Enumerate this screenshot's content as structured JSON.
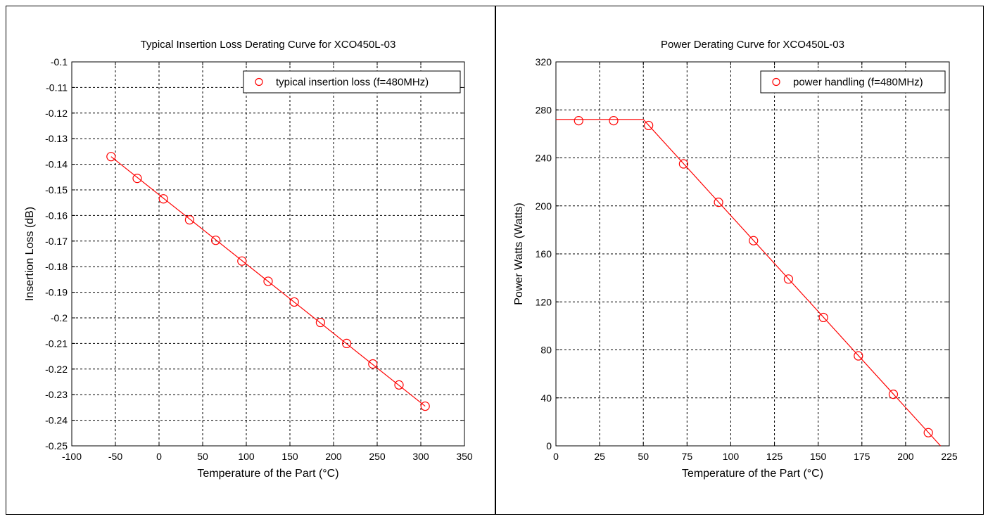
{
  "chart_data": [
    {
      "type": "scatter",
      "title": "Typical Insertion Loss Derating Curve for XCO450L-03",
      "xlabel": "Temperature of the Part (°C)",
      "ylabel": "Insertion Loss (dB)",
      "xlim": [
        -100,
        350
      ],
      "ylim": [
        -0.25,
        -0.1
      ],
      "xticks": [
        -100,
        -50,
        0,
        50,
        100,
        150,
        200,
        250,
        300,
        350
      ],
      "xtick_labels": [
        "-100",
        "-50",
        "0",
        "50",
        "100",
        "150",
        "200",
        "250",
        "300",
        "350"
      ],
      "yticks": [
        -0.1,
        -0.11,
        -0.12,
        -0.13,
        -0.14,
        -0.15,
        -0.16,
        -0.17,
        -0.18,
        -0.19,
        -0.2,
        -0.21,
        -0.22,
        -0.23,
        -0.24,
        -0.25
      ],
      "ytick_labels": [
        "-0.1",
        "-0.11",
        "-0.12",
        "-0.13",
        "-0.14",
        "-0.15",
        "-0.16",
        "-0.17",
        "-0.18",
        "-0.19",
        "-0.2",
        "-0.21",
        "-0.22",
        "-0.23",
        "-0.24",
        "-0.25"
      ],
      "grid": true,
      "legend_position": "top-right",
      "color": "#ff0000",
      "series": [
        {
          "name": "typical insertion loss (f=480MHz)",
          "marker": "circle",
          "x": [
            -55,
            -25,
            5,
            35,
            65,
            95,
            125,
            155,
            185,
            215,
            245,
            275,
            305
          ],
          "y": [
            -0.137,
            -0.1455,
            -0.1535,
            -0.1617,
            -0.1697,
            -0.1778,
            -0.1857,
            -0.1938,
            -0.2018,
            -0.21,
            -0.218,
            -0.2262,
            -0.2345
          ]
        }
      ],
      "fit_line": {
        "x": [
          -55,
          305
        ],
        "y": [
          -0.137,
          -0.2345
        ]
      }
    },
    {
      "type": "scatter",
      "title": "Power Derating Curve for XCO450L-03",
      "xlabel": "Temperature of the Part (°C)",
      "ylabel": "Power Watts (Watts)",
      "xlim": [
        0,
        225
      ],
      "ylim": [
        0,
        320
      ],
      "xticks": [
        0,
        25,
        50,
        75,
        100,
        125,
        150,
        175,
        200,
        225
      ],
      "xtick_labels": [
        "0",
        "25",
        "50",
        "75",
        "100",
        "125",
        "150",
        "175",
        "200",
        "225"
      ],
      "yticks": [
        0,
        40,
        80,
        120,
        160,
        200,
        240,
        280,
        320
      ],
      "ytick_labels": [
        "0",
        "40",
        "80",
        "120",
        "160",
        "200",
        "240",
        "280",
        "320"
      ],
      "grid": true,
      "legend_position": "top-right",
      "color": "#ff0000",
      "series": [
        {
          "name": "power handling (f=480MHz)",
          "marker": "circle",
          "x": [
            13,
            33,
            53,
            73,
            93,
            113,
            133,
            153,
            173,
            193,
            213
          ],
          "y": [
            271,
            271,
            267,
            235,
            203,
            171,
            139,
            107,
            75,
            43,
            11
          ]
        }
      ],
      "fit_line": {
        "x": [
          0,
          50,
          220
        ],
        "y": [
          272,
          272,
          0
        ]
      }
    }
  ]
}
